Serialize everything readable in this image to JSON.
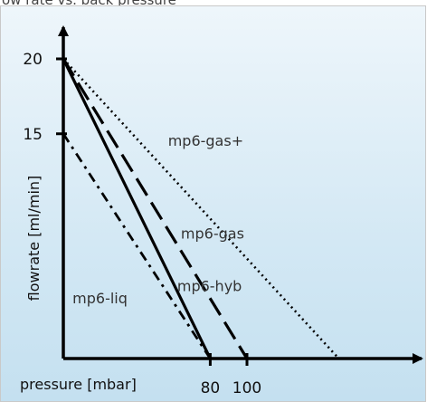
{
  "top_caption": "ow rate vs. back pressure",
  "chart_data": {
    "type": "line",
    "title": "",
    "xlabel": "pressure [mbar]",
    "ylabel": "flowrate [ml/min]",
    "xlim": [
      0,
      150
    ],
    "ylim": [
      0,
      24
    ],
    "x_ticks": [
      80,
      100
    ],
    "y_ticks": [
      15,
      20
    ],
    "grid": false,
    "legend": "inline labels",
    "series": [
      {
        "name": "mp6-liq",
        "x": [
          0,
          80
        ],
        "y": [
          15,
          0
        ],
        "style": "dash-dot",
        "color": "#000000"
      },
      {
        "name": "mp6-hyb",
        "x": [
          0,
          80
        ],
        "y": [
          20,
          0
        ],
        "style": "solid",
        "color": "#000000"
      },
      {
        "name": "mp6-gas",
        "x": [
          0,
          100
        ],
        "y": [
          20,
          0
        ],
        "style": "long-dash",
        "color": "#000000"
      },
      {
        "name": "mp6-gas+",
        "x": [
          0,
          150
        ],
        "y": [
          20,
          0
        ],
        "style": "dotted",
        "color": "#000000"
      }
    ],
    "series_labels": [
      {
        "text": "mp6-gas+",
        "at": [
          57,
          14.2
        ]
      },
      {
        "text": "mp6-gas",
        "at": [
          64,
          8.0
        ]
      },
      {
        "text": "mp6-hyb",
        "at": [
          62,
          4.5
        ]
      },
      {
        "text": "mp6-liq",
        "at": [
          5,
          3.7
        ]
      }
    ]
  },
  "colors": {
    "panel_top": "#eef6fb",
    "panel_bottom": "#c4e0f0",
    "axis": "#000000"
  }
}
